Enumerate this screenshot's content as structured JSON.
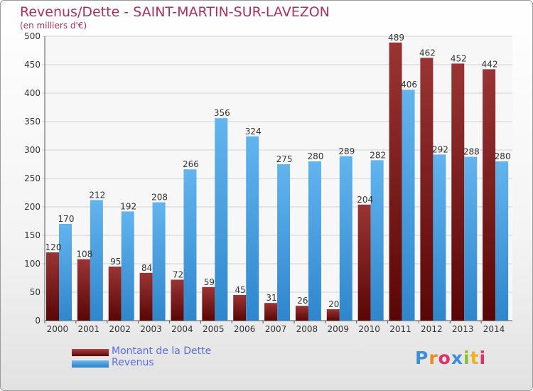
{
  "header": {
    "title": "Revenus/Dette - SAINT-MARTIN-SUR-LAVEZON",
    "subtitle": "(en milliers d'€)"
  },
  "chart_data": {
    "type": "bar",
    "title": "Revenus/Dette - SAINT-MARTIN-SUR-LAVEZON",
    "subtitle": "(en milliers d'€)",
    "xlabel": "",
    "ylabel": "",
    "categories": [
      "2000",
      "2001",
      "2002",
      "2003",
      "2004",
      "2005",
      "2006",
      "2007",
      "2008",
      "2009",
      "2010",
      "2011",
      "2012",
      "2013",
      "2014"
    ],
    "series": [
      {
        "name": "Montant de la Dette",
        "color": "#7a1a1a",
        "values": [
          120,
          108,
          95,
          84,
          72,
          59,
          45,
          31,
          26,
          20,
          204,
          489,
          462,
          452,
          442
        ]
      },
      {
        "name": "Revenus",
        "color": "#4a9fe0",
        "values": [
          170,
          212,
          192,
          208,
          266,
          356,
          324,
          275,
          280,
          289,
          282,
          406,
          292,
          288,
          280
        ]
      }
    ],
    "ylim": [
      0,
      500
    ],
    "yticks": [
      0,
      50,
      100,
      150,
      200,
      250,
      300,
      350,
      400,
      450,
      500
    ],
    "grid": true,
    "legend": "bottom-left"
  },
  "legend": {
    "items": [
      {
        "label": "Montant de la Dette",
        "color": "#7a1a1a"
      },
      {
        "label": "Revenus",
        "color": "#4a9fe0"
      }
    ]
  },
  "logo": {
    "letters": [
      "P",
      "r",
      "o",
      "x",
      "i",
      "t",
      "i"
    ],
    "colors": [
      "#3a8fd8",
      "#f08a20",
      "#e0306a",
      "#3a8fd8",
      "#8ac030",
      "#f0b020",
      "#e0306a"
    ]
  }
}
